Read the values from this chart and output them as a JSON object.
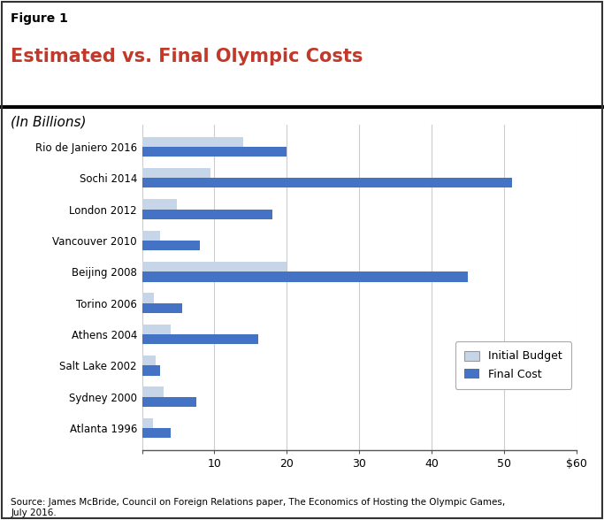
{
  "title_label": "Figure 1",
  "title": "Estimated vs. Final Olympic Costs",
  "subtitle": "(In Billions)",
  "source": "Source: James McBride, Council on Foreign Relations paper, The Economics of Hosting the Olympic Games,\nJuly 2016.",
  "categories": [
    "Atlanta 1996",
    "Sydney 2000",
    "Salt Lake 2002",
    "Athens 2004",
    "Torino 2006",
    "Beijing 2008",
    "Vancouver 2010",
    "London 2012",
    "Sochi 2014",
    "Rio de Janiero 2016"
  ],
  "initial_budget": [
    1.5,
    3.0,
    1.9,
    4.0,
    1.6,
    20.0,
    2.5,
    4.8,
    9.5,
    14.0
  ],
  "final_cost": [
    4.0,
    7.5,
    2.5,
    16.0,
    5.5,
    45.0,
    8.0,
    18.0,
    51.0,
    20.0
  ],
  "initial_color": "#c7d5e8",
  "final_color": "#4472c4",
  "title_label_fontsize": 10,
  "title_fontsize": 15,
  "subtitle_fontsize": 11,
  "xlim": [
    0,
    60
  ],
  "xticks": [
    0,
    10,
    20,
    30,
    40,
    50,
    60
  ],
  "xticklabels": [
    "",
    "10",
    "20",
    "30",
    "40",
    "50",
    "$60"
  ],
  "background_color": "#ffffff",
  "grid_color": "#cccccc",
  "title_color": "#c0392b",
  "border_color": "#333333"
}
